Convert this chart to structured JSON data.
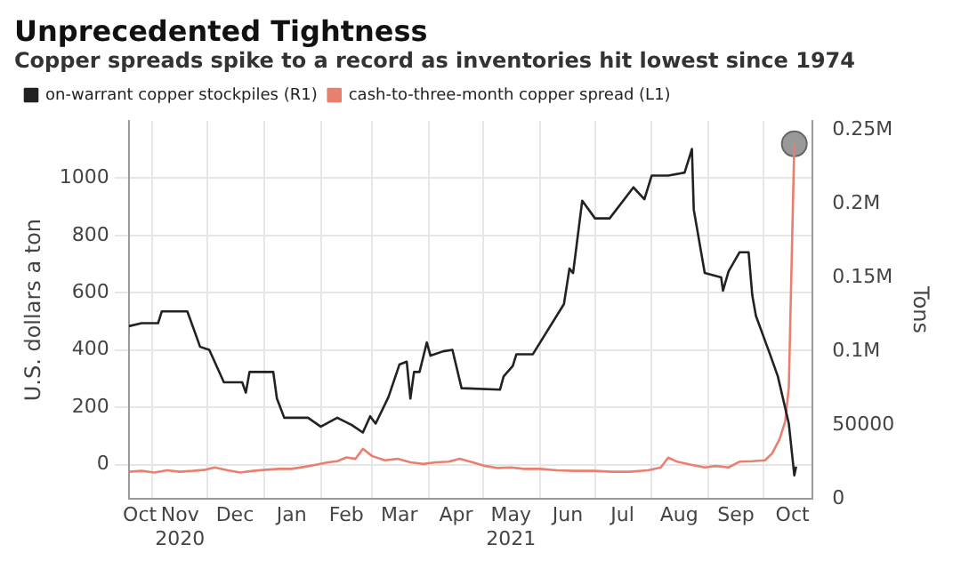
{
  "chart_data": {
    "type": "line",
    "title": "Unprecedented Tightness",
    "subtitle": "Copper spreads spike to a record as inventories hit lowest since 1974",
    "ylabel": "U.S. dollars a ton",
    "y2label": "Tons",
    "xlim": [
      "2020-10-19",
      "2021-10-28"
    ],
    "xticks": [
      {
        "value": "2020-10-25",
        "label": "Oct"
      },
      {
        "value": "2020-11-01",
        "label": null
      },
      {
        "value": "2020-11-16",
        "label": "Nov\n2020"
      },
      {
        "value": "2020-12-01",
        "label": null
      },
      {
        "value": "2020-12-16",
        "label": "Dec"
      },
      {
        "value": "2021-01-01",
        "label": null
      },
      {
        "value": "2021-01-16",
        "label": "Jan"
      },
      {
        "value": "2021-02-01",
        "label": null
      },
      {
        "value": "2021-02-15",
        "label": "Feb"
      },
      {
        "value": "2021-03-01",
        "label": null
      },
      {
        "value": "2021-03-16",
        "label": "Mar"
      },
      {
        "value": "2021-04-01",
        "label": null
      },
      {
        "value": "2021-04-16",
        "label": "Apr"
      },
      {
        "value": "2021-05-01",
        "label": null
      },
      {
        "value": "2021-05-16",
        "label": "May\n2021"
      },
      {
        "value": "2021-06-01",
        "label": null
      },
      {
        "value": "2021-06-16",
        "label": "Jun"
      },
      {
        "value": "2021-07-01",
        "label": null
      },
      {
        "value": "2021-07-16",
        "label": "Jul"
      },
      {
        "value": "2021-08-01",
        "label": null
      },
      {
        "value": "2021-08-16",
        "label": "Aug"
      },
      {
        "value": "2021-09-01",
        "label": null
      },
      {
        "value": "2021-09-16",
        "label": "Sep"
      },
      {
        "value": "2021-10-01",
        "label": null
      },
      {
        "value": "2021-10-17",
        "label": "Oct"
      }
    ],
    "ylim": [
      -120,
      1200
    ],
    "yticks": [
      0,
      200,
      400,
      600,
      800,
      1000
    ],
    "y2lim": [
      0,
      256000
    ],
    "y2ticks": [
      0,
      {
        "value": 100000,
        "label": "0.1M"
      },
      {
        "value": 150000,
        "label": "0.15M"
      },
      {
        "value": 200000,
        "label": "0.2M"
      },
      {
        "value": 250000,
        "label": "0.25M"
      },
      50000
    ],
    "grid": true,
    "legend": "top left",
    "marker": "none",
    "series": [
      {
        "name": "on-warrant copper stockpiles (R1)",
        "color": "#222222",
        "axis": "y2",
        "x": [
          "2020-10-19",
          "2020-10-26",
          "2020-11-04",
          "2020-11-06",
          "2020-11-20",
          "2020-11-27",
          "2020-12-02",
          "2020-12-10",
          "2020-12-20",
          "2020-12-22",
          "2020-12-24",
          "2021-01-06",
          "2021-01-08",
          "2021-01-12",
          "2021-01-25",
          "2021-02-01",
          "2021-02-10",
          "2021-02-18",
          "2021-02-24",
          "2021-02-28",
          "2021-03-03",
          "2021-03-10",
          "2021-03-16",
          "2021-03-20",
          "2021-03-22",
          "2021-03-24",
          "2021-03-27",
          "2021-03-31",
          "2021-04-02",
          "2021-04-09",
          "2021-04-14",
          "2021-04-19",
          "2021-05-10",
          "2021-05-12",
          "2021-05-17",
          "2021-05-19",
          "2021-05-28",
          "2021-06-14",
          "2021-06-17",
          "2021-06-19",
          "2021-06-24",
          "2021-07-01",
          "2021-07-09",
          "2021-07-22",
          "2021-07-28",
          "2021-08-01",
          "2021-08-10",
          "2021-08-19",
          "2021-08-23",
          "2021-08-24",
          "2021-08-30",
          "2021-09-08",
          "2021-09-09",
          "2021-09-12",
          "2021-09-18",
          "2021-09-23",
          "2021-09-25",
          "2021-09-27",
          "2021-10-05",
          "2021-10-09",
          "2021-10-15",
          "2021-10-18",
          "2021-10-19"
        ],
        "values": [
          117000,
          119000,
          119000,
          127000,
          127000,
          103000,
          101000,
          79000,
          79000,
          72000,
          86000,
          86000,
          68000,
          55000,
          55000,
          49000,
          55000,
          50000,
          45000,
          56000,
          51000,
          69000,
          91000,
          93000,
          68000,
          86000,
          86000,
          106000,
          97000,
          100000,
          101000,
          75000,
          74000,
          83000,
          90000,
          98000,
          98000,
          132000,
          156000,
          153000,
          202000,
          190000,
          190000,
          211000,
          203000,
          219000,
          219000,
          221000,
          237000,
          196000,
          153000,
          150000,
          141000,
          154000,
          167000,
          167000,
          138000,
          124000,
          97000,
          83000,
          51000,
          16000,
          22000
        ]
      },
      {
        "name": "cash-to-three-month copper spread (L1)",
        "color": "#e8806f",
        "axis": "y",
        "x": [
          "2020-10-19",
          "2020-10-26",
          "2020-11-02",
          "2020-11-09",
          "2020-11-16",
          "2020-11-23",
          "2020-11-30",
          "2020-12-05",
          "2020-12-12",
          "2020-12-19",
          "2020-12-26",
          "2021-01-02",
          "2021-01-09",
          "2021-01-16",
          "2021-01-23",
          "2021-01-30",
          "2021-02-05",
          "2021-02-10",
          "2021-02-15",
          "2021-02-20",
          "2021-02-24",
          "2021-03-01",
          "2021-03-08",
          "2021-03-15",
          "2021-03-22",
          "2021-03-29",
          "2021-04-05",
          "2021-04-12",
          "2021-04-18",
          "2021-04-25",
          "2021-05-02",
          "2021-05-09",
          "2021-05-16",
          "2021-05-23",
          "2021-06-01",
          "2021-06-10",
          "2021-06-20",
          "2021-07-01",
          "2021-07-10",
          "2021-07-20",
          "2021-07-30",
          "2021-08-06",
          "2021-08-10",
          "2021-08-15",
          "2021-08-22",
          "2021-08-30",
          "2021-09-05",
          "2021-09-12",
          "2021-09-18",
          "2021-09-25",
          "2021-10-02",
          "2021-10-06",
          "2021-10-10",
          "2021-10-13",
          "2021-10-15",
          "2021-10-18"
        ],
        "values": [
          -25,
          -22,
          -28,
          -20,
          -25,
          -22,
          -18,
          -10,
          -20,
          -28,
          -22,
          -18,
          -15,
          -15,
          -8,
          0,
          8,
          12,
          25,
          20,
          55,
          30,
          15,
          20,
          8,
          2,
          8,
          10,
          20,
          8,
          -5,
          -12,
          -10,
          -15,
          -15,
          -20,
          -22,
          -22,
          -25,
          -25,
          -20,
          -10,
          24,
          10,
          0,
          -10,
          -5,
          -10,
          10,
          12,
          15,
          40,
          90,
          150,
          270,
          1120
        ]
      },
      {
        "type": "scatter",
        "color": "#999999",
        "axis": "y",
        "marker": "circle",
        "x": [
          "2021-10-18"
        ],
        "values": [
          1120
        ]
      }
    ]
  }
}
